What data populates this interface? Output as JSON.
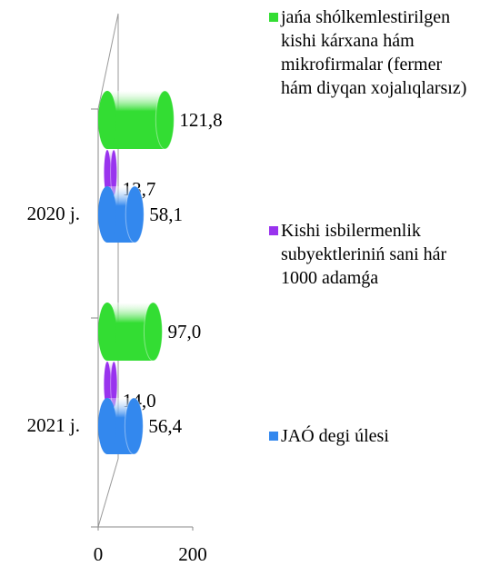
{
  "chart_data": {
    "type": "bar",
    "orientation": "horizontal",
    "style": "3d-cylinder",
    "categories": [
      "2020 j.",
      "2021 j."
    ],
    "series": [
      {
        "name": "jańa shólkemlestirilgen kishi  kárxana hám mikrofirmalar (fermer hám diyqan xojalıqlarsız)",
        "color": "#33dd33",
        "values": [
          121.8,
          97.0
        ],
        "value_labels": [
          "121,8",
          "97,0"
        ]
      },
      {
        "name": "Kishi isbilermenlik subyektleriniń sani hár 1000 adamǵa",
        "color": "#9933ee",
        "values": [
          13.7,
          14.0
        ],
        "value_labels": [
          "13,7",
          "14,0"
        ]
      },
      {
        "name": "JAÓ degi úlesi",
        "color": "#3388ee",
        "values": [
          58.1,
          56.4
        ],
        "value_labels": [
          "58,1",
          "56,4"
        ]
      }
    ],
    "xlim": [
      0,
      200
    ],
    "xticks": [
      0,
      200
    ],
    "legend": "right"
  }
}
